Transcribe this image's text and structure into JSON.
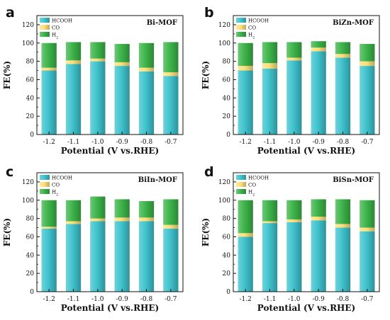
{
  "colors": {
    "HCOOH": "#3fc3cd",
    "CO": "#fde07a",
    "H2": "#3cb449"
  },
  "chart_data": [
    {
      "type": "bar",
      "letter": "a",
      "title": "Bi-MOF",
      "ylabel": "FE(%)",
      "xlabel": "Potential (V vs.RHE)",
      "ylim": [
        0,
        130
      ],
      "yticks": [
        0,
        20,
        40,
        60,
        80,
        100,
        120
      ],
      "categories": [
        "-1.2",
        "-1.1",
        "-1.0",
        "-0.9",
        "-0.8",
        "-0.7"
      ],
      "legend": [
        "HCOOH",
        "CO",
        "H2"
      ],
      "series": [
        {
          "name": "HCOOH",
          "values": [
            70,
            77,
            80,
            75,
            69,
            64
          ]
        },
        {
          "name": "CO",
          "values": [
            3,
            4,
            3,
            4,
            4,
            4
          ]
        },
        {
          "name": "H2",
          "values": [
            27,
            20,
            18,
            20,
            27,
            33
          ]
        }
      ]
    },
    {
      "type": "bar",
      "letter": "b",
      "title": "BiZn-MOF",
      "ylabel": "FE(%)",
      "xlabel": "Potential (V vs.RHE)",
      "ylim": [
        0,
        130
      ],
      "yticks": [
        0,
        20,
        40,
        60,
        80,
        100,
        120
      ],
      "categories": [
        "-1.2",
        "-1.1",
        "-1.0",
        "-0.9",
        "-0.8",
        "-0.7"
      ],
      "legend": [
        "HCOOH",
        "CO",
        "H2"
      ],
      "series": [
        {
          "name": "HCOOH",
          "values": [
            70,
            72,
            81,
            91,
            84,
            75
          ]
        },
        {
          "name": "CO",
          "values": [
            5,
            6,
            3,
            4,
            4,
            5
          ]
        },
        {
          "name": "H2",
          "values": [
            25,
            23,
            17,
            7,
            13,
            19
          ]
        }
      ]
    },
    {
      "type": "bar",
      "letter": "c",
      "title": "BiIn-MOF",
      "ylabel": "FE(%)",
      "xlabel": "Potential (V vs.RHE)",
      "ylim": [
        0,
        130
      ],
      "yticks": [
        0,
        20,
        40,
        60,
        80,
        100,
        120
      ],
      "categories": [
        "-1.2",
        "-1.1",
        "-1.0",
        "-0.9",
        "-0.8",
        "-0.7"
      ],
      "legend": [
        "HCOOH",
        "CO",
        "H2"
      ],
      "series": [
        {
          "name": "HCOOH",
          "values": [
            69,
            74,
            77,
            77,
            77,
            69
          ]
        },
        {
          "name": "CO",
          "values": [
            2,
            3,
            3,
            4,
            4,
            4
          ]
        },
        {
          "name": "H2",
          "values": [
            29,
            23,
            24,
            20,
            18,
            28
          ]
        }
      ]
    },
    {
      "type": "bar",
      "letter": "d",
      "title": "BiSn-MOF",
      "ylabel": "FE(%)",
      "xlabel": "Potential (V vs.RHE)",
      "ylim": [
        0,
        130
      ],
      "yticks": [
        0,
        20,
        40,
        60,
        80,
        100,
        120
      ],
      "categories": [
        "-1.2",
        "-1.1",
        "-1.0",
        "-0.9",
        "-0.8",
        "-0.7"
      ],
      "legend": [
        "HCOOH",
        "CO",
        "H2"
      ],
      "series": [
        {
          "name": "HCOOH",
          "values": [
            60,
            75,
            76,
            78,
            70,
            66
          ]
        },
        {
          "name": "CO",
          "values": [
            4,
            2,
            3,
            4,
            4,
            4
          ]
        },
        {
          "name": "H2",
          "values": [
            36,
            23,
            21,
            19,
            27,
            30
          ]
        }
      ]
    }
  ]
}
